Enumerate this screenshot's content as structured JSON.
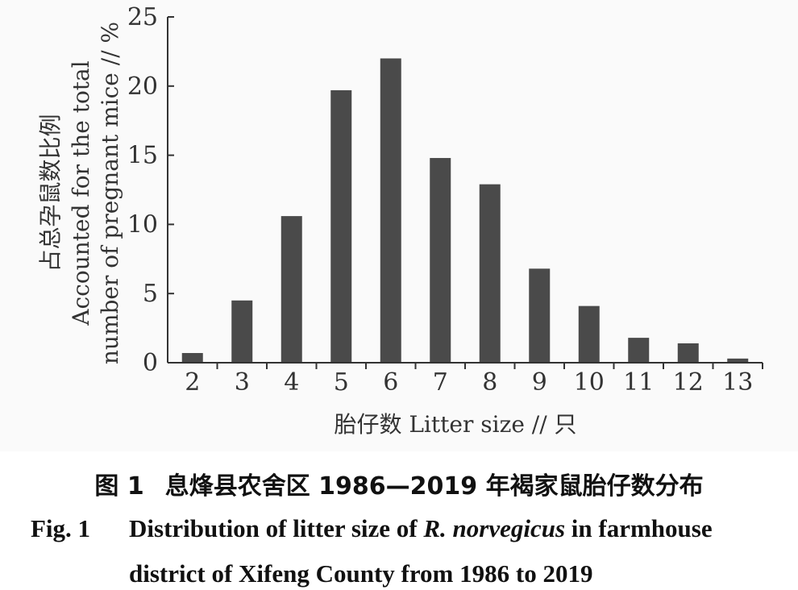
{
  "chart_data": {
    "type": "bar",
    "categories": [
      "2",
      "3",
      "4",
      "5",
      "6",
      "7",
      "8",
      "9",
      "10",
      "11",
      "12",
      "13"
    ],
    "values": [
      0.7,
      4.5,
      10.6,
      19.7,
      22.0,
      14.8,
      12.9,
      6.8,
      4.1,
      1.8,
      1.4,
      0.3
    ],
    "xlabel": "胎仔数 Litter size // 只",
    "ylabel_lines": [
      "占总孕鼠数比例",
      "Accounted for the total",
      "number of pregnant mice // %"
    ],
    "ylim": [
      0,
      25
    ],
    "yticks": [
      "0",
      "5",
      "10",
      "15",
      "20",
      "25"
    ],
    "bar_color": "#4a4a4a",
    "grid": false,
    "legend": "none"
  },
  "caption": {
    "cn_fig_no": "图 1",
    "cn_text": "息烽县农舍区 1986—2019 年褐家鼠胎仔数分布",
    "en_fig_no": "Fig. 1",
    "en_line1_prefix": "Distribution of litter size of ",
    "en_species": "R.  norvegicus",
    "en_line1_suffix": " in farmhouse",
    "en_line2": "district of Xifeng County from 1986 to 2019"
  }
}
